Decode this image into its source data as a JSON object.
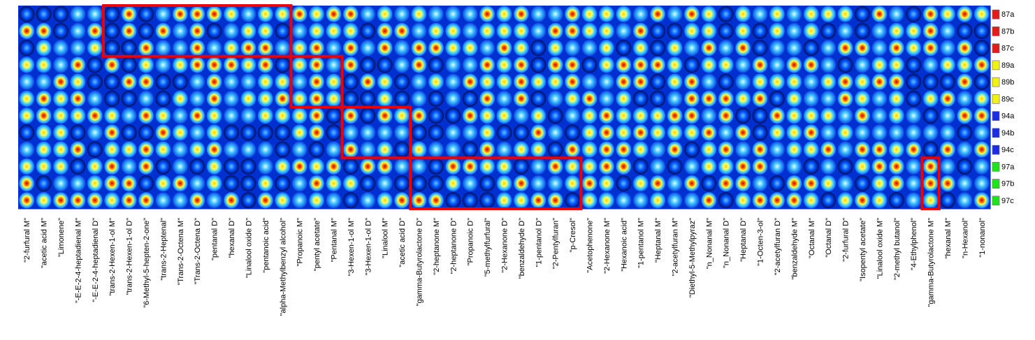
{
  "chart_data": {
    "type": "heatmap",
    "title": "",
    "xlabel": "",
    "ylabel": "",
    "rows": [
      {
        "label": "87a",
        "color": "#e51c1c"
      },
      {
        "label": "87b",
        "color": "#e51c1c"
      },
      {
        "label": "87c",
        "color": "#e51c1c"
      },
      {
        "label": "89a",
        "color": "#f2f20f"
      },
      {
        "label": "89b",
        "color": "#f2f20f"
      },
      {
        "label": "89c",
        "color": "#f2f20f"
      },
      {
        "label": "94a",
        "color": "#1c2ce5"
      },
      {
        "label": "94b",
        "color": "#1c2ce5"
      },
      {
        "label": "94c",
        "color": "#1c2ce5"
      },
      {
        "label": "97a",
        "color": "#1ce51c"
      },
      {
        "label": "97b",
        "color": "#1ce51c"
      },
      {
        "label": "97c",
        "color": "#1ce51c"
      }
    ],
    "columns": [
      "\"2-furfural M\"",
      "\"acetic acid M\"",
      "\"Limonene\"",
      "\"-E-E-2-4-heptadienal M\"",
      "\"-E-E-2-4-heptadienal D\"",
      "\"trans-2-Hexen-1-ol M\"",
      "\"trans-2-Hexen-1-ol D\"",
      "\"6-Methyl-5-hepten-2-one\"",
      "\"trans-2-Heptenal\"",
      "\"Trans-2-Octena M\"",
      "\"Trans-2-Octena D\"",
      "\"pentanal D\"",
      "\"hexanal D\"",
      "\"Linalool oxide D\"",
      "\"pentanoic acid\"",
      "\"alpha-Methylbenzyl alcohol\"",
      "\"Propanoic M\"",
      "\"pentyl acetate\"",
      "\"Pentanal M\"",
      "\"3-Hexen-1-ol M\"",
      "\"3-Hexen-1-ol D\"",
      "\"Linalool M\"",
      "\"acetic acid D\"",
      "\"gamma-Butyrolactone D\"",
      "\"2-heptanone M\"",
      "\"2-heptanone D\"",
      "\"Propanoic D\"",
      "\"5-methylfurfural\"",
      "\"2-Hexanone D\"",
      "\"benzaldehyde D\"",
      "\"1-pentanol D\"",
      "\"2-Pentylfuran\"",
      "\"p-Cresol\"",
      "\"Acetophenone\"",
      "\"2-Hexanone M\"",
      "\"Hexanoic acid\"",
      "\"1-pentanol M\"",
      "\"Heptanal M\"",
      "\"2-acetylfuran M\"",
      "\"Diethyl-5-Methylpyraz\"",
      "\"n_Nonanal M\"",
      "\"n_Nonanal D\"",
      "\"Heptanal D\"",
      "\"1-Octen-3-ol\"",
      "\"2-acetylfuran D\"",
      "\"benzaldehyde M\"",
      "\"Octanal M\"",
      "\"Octanal D\"",
      "\"2-furfural D\"",
      "\"Isopentyl acetate\"",
      "\"Linalool oxide M\"",
      "\"2-methyl butanol\"",
      "\"4-Ethylphenol\"",
      "\"gamma-Butyrolactone M\"",
      "\"hexanal M\"",
      "\"n-Hexanol\"",
      "\"1-nonanol\""
    ],
    "cell_colors": [
      "#00003c",
      "#0040ff",
      "#40c0ff",
      "#ffff40",
      "#ff6000",
      "#c00000"
    ],
    "highlight_color": "#ee0000",
    "highlight_boxes": [
      {
        "columns": [
          "\"trans-2-Hexen-1-ol M\"",
          "\"alpha-Methylbenzyl alcohol\""
        ],
        "rows": [
          "87a",
          "87c"
        ]
      },
      {
        "columns": [
          "\"Propanoic M\"",
          "\"Pentanal M\""
        ],
        "rows": [
          "89a",
          "89c"
        ]
      },
      {
        "columns": [
          "\"3-Hexen-1-ol M\"",
          "\"acetic acid D\""
        ],
        "rows": [
          "94a",
          "94c"
        ]
      },
      {
        "columns": [
          "\"gamma-Butyrolactone D\"",
          "\"p-Cresol\""
        ],
        "rows": [
          "97a",
          "97c"
        ]
      },
      {
        "columns": [
          "\"gamma-Butyrolactone M\"",
          "\"gamma-Butyrolactone M\""
        ],
        "rows": [
          "97a",
          "97c"
        ]
      }
    ]
  }
}
